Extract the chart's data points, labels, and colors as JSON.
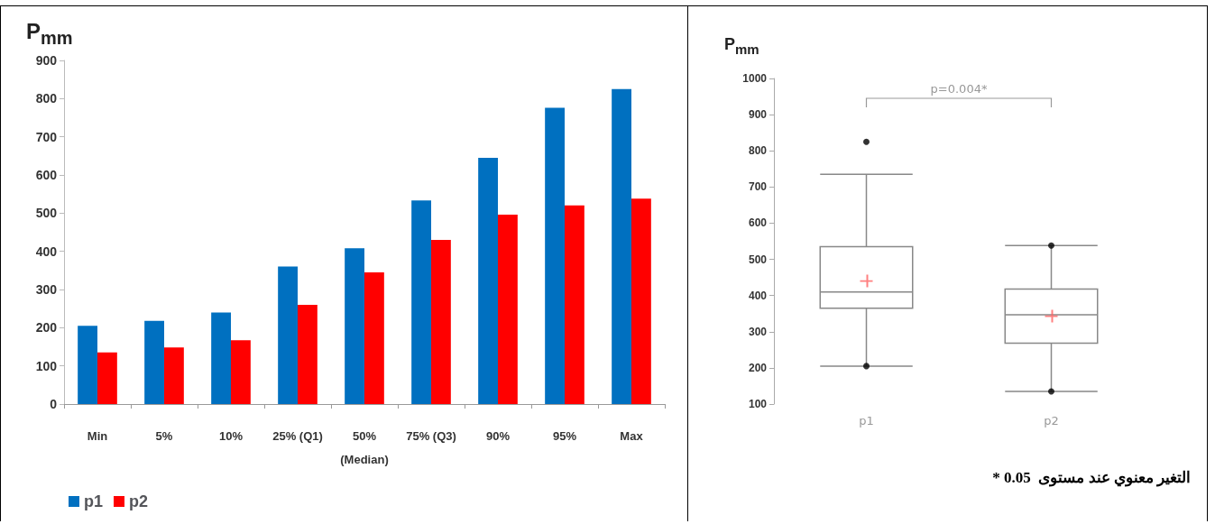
{
  "chart_data": [
    {
      "type": "bar",
      "ylabel": "P$_{mm}$",
      "categories": [
        "Min",
        "5%",
        "10%",
        "25% (Q1)",
        "50%\n(Median)",
        "75% (Q3)",
        "90%",
        "95%",
        "Max"
      ],
      "series": [
        {
          "name": "p1",
          "color": "#0070c0",
          "values": [
            205,
            218,
            240,
            360,
            408,
            533,
            645,
            776,
            825
          ]
        },
        {
          "name": "p2",
          "color": "#ff0000",
          "values": [
            135,
            148,
            167,
            260,
            345,
            430,
            496,
            520,
            538
          ]
        }
      ],
      "ylim": [
        0,
        900
      ],
      "yticks": [
        0,
        100,
        200,
        300,
        400,
        500,
        600,
        700,
        800,
        900
      ],
      "grid": false,
      "legend": "bottom left"
    },
    {
      "type": "box",
      "ylabel": "P$_{mm}$",
      "categories": [
        "p1",
        "p2"
      ],
      "boxes": [
        {
          "low": 205,
          "q1": 365,
          "median": 410,
          "q3": 535,
          "high": 735,
          "mean": 440,
          "outliers": [
            205,
            825
          ]
        },
        {
          "low": 135,
          "q1": 268,
          "median": 347,
          "q3": 418,
          "high": 538,
          "mean": 343,
          "outliers": [
            135,
            538
          ]
        }
      ],
      "ylim": [
        100,
        1000
      ],
      "yticks": [
        100,
        200,
        300,
        400,
        500,
        600,
        700,
        800,
        900,
        1000
      ],
      "grid": false,
      "annotations": [
        "p=0.004*",
        "* التغير معنوي عند مستوى  0.05"
      ]
    }
  ]
}
